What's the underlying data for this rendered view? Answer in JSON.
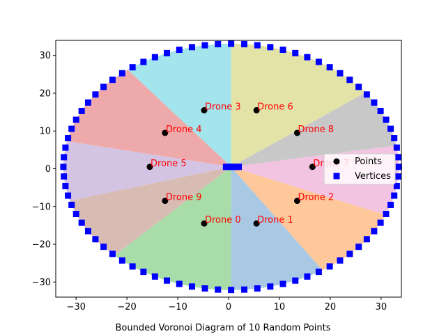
{
  "chart_data": {
    "type": "scatter",
    "title": "",
    "xlabel": "Bounded Voronoi Diagram of 10 Random Points",
    "ylabel": "",
    "xlim": [
      -34,
      34
    ],
    "ylim": [
      -34,
      34
    ],
    "xticks": [
      -30,
      -20,
      -10,
      0,
      10,
      20,
      30
    ],
    "yticks": [
      -30,
      -20,
      -10,
      0,
      10,
      20,
      30
    ],
    "grid": false,
    "legend_position": "right",
    "legend": [
      {
        "name": "Points",
        "marker": "circle",
        "color": "#000000"
      },
      {
        "name": "Vertices",
        "marker": "square",
        "color": "#0000ff"
      }
    ],
    "regions": [
      {
        "label": "Drone 0",
        "color": "#a8c8e4"
      },
      {
        "label": "Drone 1",
        "color": "#ffc89a"
      },
      {
        "label": "Drone 2",
        "color": "#f2c4e2"
      },
      {
        "label": "Drone 7",
        "color": "#c8c8c8"
      },
      {
        "label": "Drone 8",
        "color": "#e3e3a8"
      },
      {
        "label": "Drone 6",
        "color": "#a4e4ec"
      },
      {
        "label": "Drone 3",
        "color": "#eeaaaa"
      },
      {
        "label": "Drone 4",
        "color": "#d4c4e4"
      },
      {
        "label": "Drone 5",
        "color": "#d8bcb4"
      },
      {
        "label": "Drone 9",
        "color": "#a8dca8"
      }
    ],
    "points": [
      {
        "label": "Drone 0",
        "x": -4.8,
        "y": -14.5
      },
      {
        "label": "Drone 1",
        "x": 5.5,
        "y": -14.5
      },
      {
        "label": "Drone 2",
        "x": 13.5,
        "y": -8.5
      },
      {
        "label": "Drone 3",
        "x": -4.8,
        "y": 15.5
      },
      {
        "label": "Drone 4",
        "x": -12.5,
        "y": 9.5
      },
      {
        "label": "Drone 5",
        "x": -15.5,
        "y": 0.5
      },
      {
        "label": "Drone 6",
        "x": 5.5,
        "y": 15.5
      },
      {
        "label": "Drone 7",
        "x": 16.5,
        "y": 0.5
      },
      {
        "label": "Drone 8",
        "x": 13.5,
        "y": 9.5
      },
      {
        "label": "Drone 9",
        "x": -12.5,
        "y": -8.5
      }
    ],
    "boundary": {
      "center_x": 0.5,
      "center_y": 0.5,
      "radius_x": 33,
      "radius_y": 32.6,
      "vertex_count": 80
    },
    "center_vertices_x": [
      -0.5,
      0,
      0.5,
      1,
      1.5,
      2
    ],
    "center_vertices_y": 0.5,
    "region_axis_x": 0.5,
    "region_axis_y": 0.5,
    "region_boundary_angles_deg": [
      270,
      303,
      337,
      10,
      37,
      90,
      128,
      168,
      196,
      226
    ]
  }
}
